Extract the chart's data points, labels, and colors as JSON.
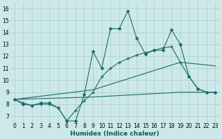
{
  "xlabel": "Humidex (Indice chaleur)",
  "xlim": [
    -0.5,
    23.5
  ],
  "ylim": [
    6.5,
    16.5
  ],
  "xticks": [
    0,
    1,
    2,
    3,
    4,
    5,
    6,
    7,
    8,
    9,
    10,
    11,
    12,
    13,
    14,
    15,
    16,
    17,
    18,
    19,
    20,
    21,
    22,
    23
  ],
  "yticks": [
    7,
    8,
    9,
    10,
    11,
    12,
    13,
    14,
    15,
    16
  ],
  "bg_color": "#cce8e8",
  "grid_color": "#aacccc",
  "line_color": "#1a6b6b",
  "line1_x": [
    0,
    1,
    2,
    3,
    4,
    5,
    6,
    7,
    8,
    9,
    10,
    11,
    12,
    13,
    14,
    15,
    16,
    17,
    18,
    19,
    20,
    21,
    22,
    23
  ],
  "line1_y": [
    8.4,
    8.0,
    7.9,
    8.1,
    8.1,
    7.7,
    6.6,
    6.6,
    8.8,
    12.4,
    11.0,
    14.3,
    14.3,
    15.8,
    13.5,
    12.2,
    12.5,
    12.5,
    14.2,
    13.0,
    10.3,
    9.3,
    9.0,
    9.0
  ],
  "line2_x": [
    0,
    1,
    2,
    3,
    4,
    5,
    6,
    7,
    8,
    9,
    10,
    11,
    12,
    13,
    14,
    15,
    16,
    17,
    18,
    19,
    20,
    21,
    22,
    23
  ],
  "line2_y": [
    8.4,
    8.1,
    7.9,
    8.0,
    8.0,
    7.7,
    6.6,
    7.5,
    8.3,
    9.0,
    10.3,
    11.0,
    11.5,
    11.8,
    12.1,
    12.3,
    12.5,
    12.7,
    12.8,
    11.5,
    10.3,
    9.3,
    9.0,
    9.0
  ],
  "line3_x": [
    0,
    9,
    19,
    23
  ],
  "line3_y": [
    8.4,
    9.2,
    11.5,
    11.2
  ],
  "line4_x": [
    0,
    9,
    19,
    23
  ],
  "line4_y": [
    8.4,
    8.6,
    9.0,
    9.0
  ],
  "tick_fontsize": 5.5,
  "label_fontsize": 6.5
}
